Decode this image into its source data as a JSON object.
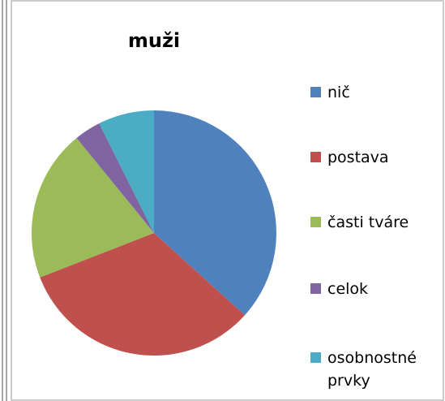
{
  "chart_data": {
    "type": "pie",
    "title": "muži",
    "categories": [
      "nič",
      "postava",
      "časti tváre",
      "celok",
      "osobnostné prvky"
    ],
    "values": [
      36.7,
      32.4,
      20,
      3.5,
      7.4
    ],
    "colors": [
      "#4f81bd",
      "#c0504d",
      "#9bbb59",
      "#8064a2",
      "#4bacc6"
    ],
    "legend": "right"
  }
}
